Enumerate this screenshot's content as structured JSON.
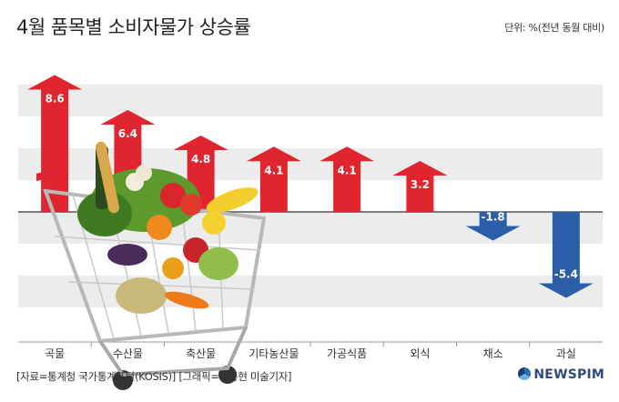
{
  "header": {
    "title": "4월 품목별 소비자물가 상승률",
    "unit": "단위: %(전년 동월 대비)"
  },
  "footer": {
    "source": "[자료=통계청 국가통계포털(KOSIS)] [그래픽=홍종현 미술기자]",
    "brand": "NEWSPIM"
  },
  "colors": {
    "positive": "#e0252f",
    "negative": "#2a5ea8",
    "stripe": "#ececec"
  },
  "chart_data": {
    "type": "bar",
    "title": "4월 품목별 소비자물가 상승률",
    "ylabel": "",
    "unit": "%",
    "ylim": [
      -7,
      10
    ],
    "grid": true,
    "categories": [
      "곡물",
      "수산물",
      "축산물",
      "기타농산물",
      "가공식품",
      "외식",
      "채소",
      "과실"
    ],
    "values": [
      8.6,
      6.4,
      4.8,
      4.1,
      4.1,
      3.2,
      -1.8,
      -5.4
    ],
    "value_labels": [
      "8.6",
      "6.4",
      "4.8",
      "4.1",
      "4.1",
      "3.2",
      "-1.8",
      "-5.4"
    ]
  }
}
